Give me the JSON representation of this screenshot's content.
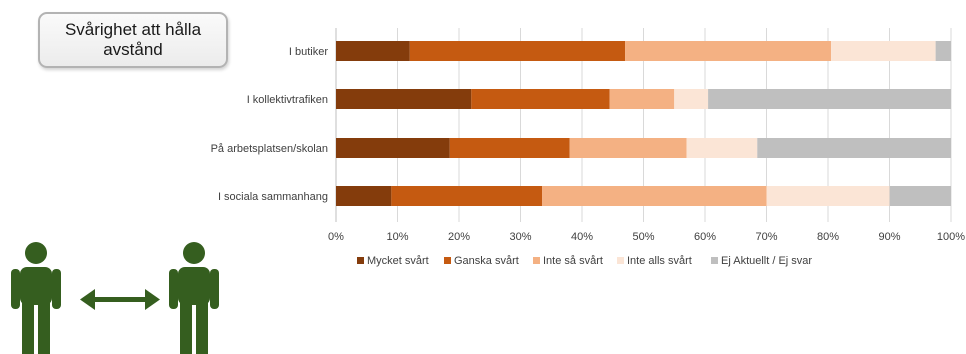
{
  "title": "Svårighet att hålla avstånd",
  "colors": {
    "accent_green": "#355e1f",
    "series": [
      "#843c0c",
      "#c55a11",
      "#f4b183",
      "#fbe5d6",
      "#bfbfbf"
    ]
  },
  "icons": [
    "person-icon",
    "double-arrow-icon",
    "person-icon"
  ],
  "chart_data": {
    "type": "bar",
    "orientation": "horizontal",
    "stacked": "percent",
    "categories": [
      "I butiker",
      "I kollektivtrafiken",
      "På arbetsplatsen/skolan",
      "I sociala sammanhang"
    ],
    "series": [
      {
        "name": "Mycket svårt",
        "values": [
          12,
          22,
          18.5,
          9
        ]
      },
      {
        "name": "Ganska svårt",
        "values": [
          35,
          22.5,
          19.5,
          24.5
        ]
      },
      {
        "name": "Inte så svårt",
        "values": [
          33.5,
          10.5,
          19,
          36.5
        ]
      },
      {
        "name": "Inte alls svårt",
        "values": [
          17,
          5.5,
          11.5,
          20
        ]
      },
      {
        "name": "Ej Aktuellt / Ej svar",
        "values": [
          2.5,
          39.5,
          31.5,
          10
        ]
      }
    ],
    "x_ticks": [
      "0%",
      "10%",
      "20%",
      "30%",
      "40%",
      "50%",
      "60%",
      "70%",
      "80%",
      "90%",
      "100%"
    ],
    "xlim": [
      0,
      100
    ],
    "grid": "vertical",
    "legend": "bottom"
  }
}
